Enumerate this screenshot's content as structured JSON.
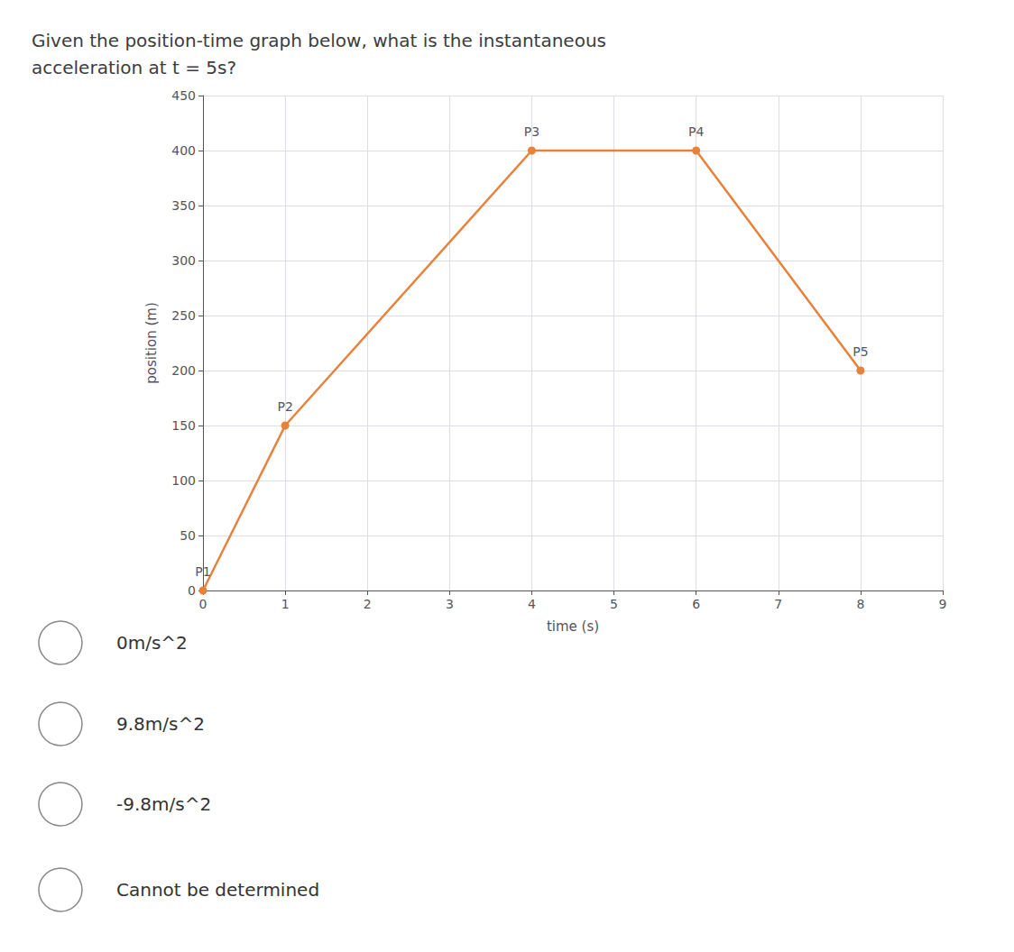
{
  "chart_data": {
    "type": "line",
    "title": "Given the position-time graph below, what is the instantaneous\nacceleration at t = 5s?",
    "x": [
      0,
      1,
      4,
      6,
      8
    ],
    "values": [
      0,
      150,
      400,
      400,
      200
    ],
    "point_labels": [
      "P1",
      "P2",
      "P3",
      "P4",
      "P5"
    ],
    "color": "#E8823A",
    "marker": "circle",
    "xlabel": "time (s)",
    "ylabel": "position (m)",
    "xlim": [
      0,
      9
    ],
    "ylim": [
      0,
      450
    ],
    "xticks": [
      0,
      1,
      2,
      3,
      4,
      5,
      6,
      7,
      8,
      9
    ],
    "yticks": [
      0,
      50,
      100,
      150,
      200,
      250,
      300,
      350,
      400,
      450
    ],
    "grid": true,
    "annotations": [
      "0m/s^2",
      "9.8m/s^2",
      "-9.8m/s^2",
      "Cannot be determined"
    ]
  }
}
